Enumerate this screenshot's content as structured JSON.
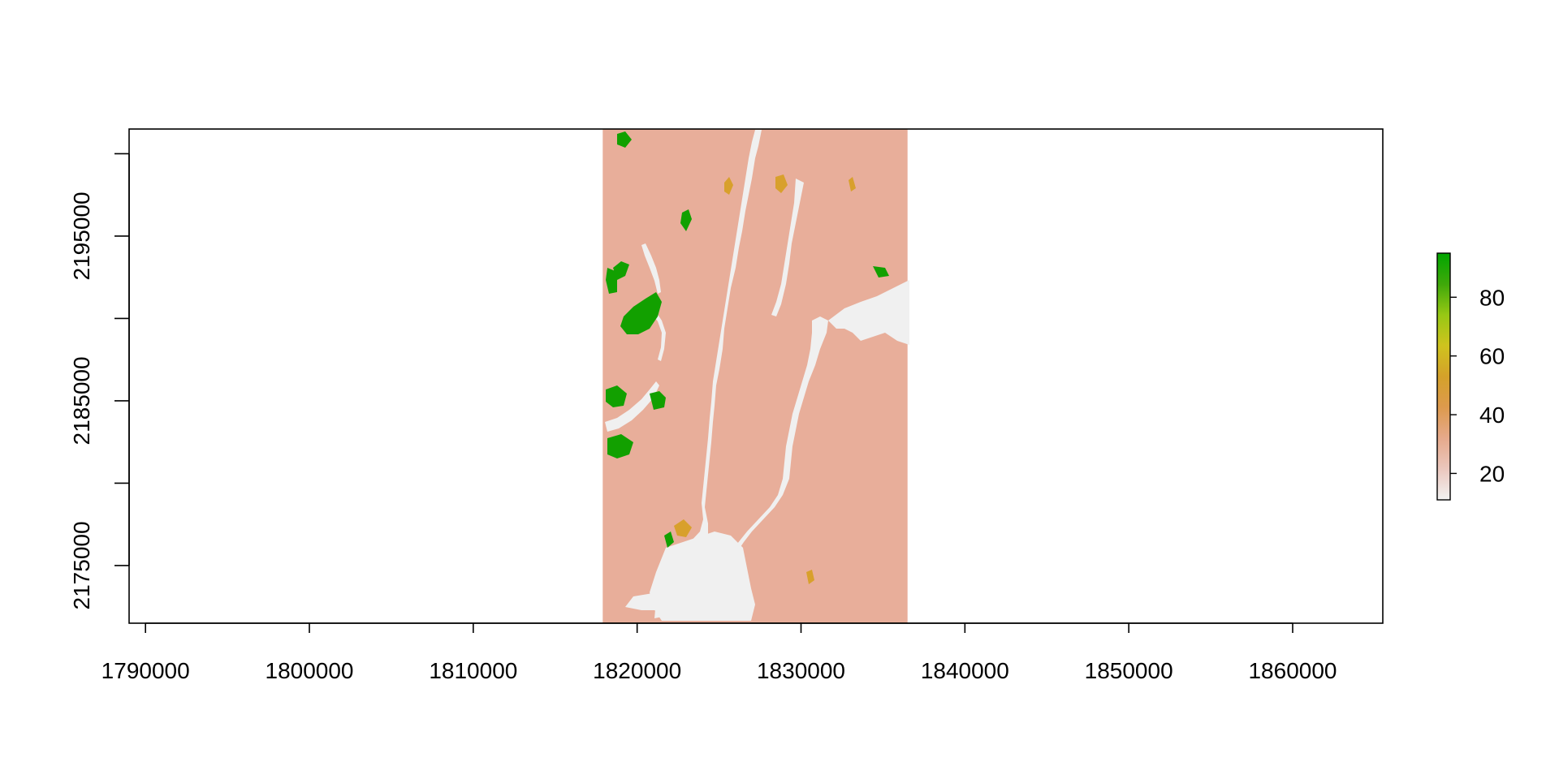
{
  "chart_data": {
    "type": "heatmap",
    "title": "",
    "xlabel": "",
    "ylabel": "",
    "xlim": [
      1789000,
      1865500
    ],
    "ylim": [
      2171500,
      2201500
    ],
    "x_ticks": [
      {
        "value": 1790000,
        "label": "1790000"
      },
      {
        "value": 1800000,
        "label": "1800000"
      },
      {
        "value": 1810000,
        "label": "1810000"
      },
      {
        "value": 1820000,
        "label": "1820000"
      },
      {
        "value": 1830000,
        "label": "1830000"
      },
      {
        "value": 1840000,
        "label": "1840000"
      },
      {
        "value": 1850000,
        "label": "1850000"
      },
      {
        "value": 1860000,
        "label": "1860000"
      }
    ],
    "y_ticks": [
      {
        "value": 2175000,
        "label": "2175000"
      },
      {
        "value": 2180000,
        "label": ""
      },
      {
        "value": 2185000,
        "label": "2185000"
      },
      {
        "value": 2190000,
        "label": ""
      },
      {
        "value": 2195000,
        "label": "2195000"
      },
      {
        "value": 2200000,
        "label": ""
      }
    ],
    "raster_extent": {
      "xmin": 1817900,
      "xmax": 1836500,
      "ymin": 2171500,
      "ymax": 2201500
    },
    "na_color": "#f0f0f0",
    "base_color": "#e8ae9a",
    "legend": {
      "position": "right",
      "min": 11,
      "max": 95,
      "ticks": [
        {
          "value": 20,
          "label": "20"
        },
        {
          "value": 40,
          "label": "40"
        },
        {
          "value": 60,
          "label": "60"
        },
        {
          "value": 80,
          "label": "80"
        }
      ],
      "colors": [
        "#f2f2f2",
        "#ebc7bd",
        "#e6a98b",
        "#dd9a4d",
        "#d4a12a",
        "#cfc31e",
        "#97c814",
        "#3fa80a",
        "#00a600"
      ]
    }
  }
}
